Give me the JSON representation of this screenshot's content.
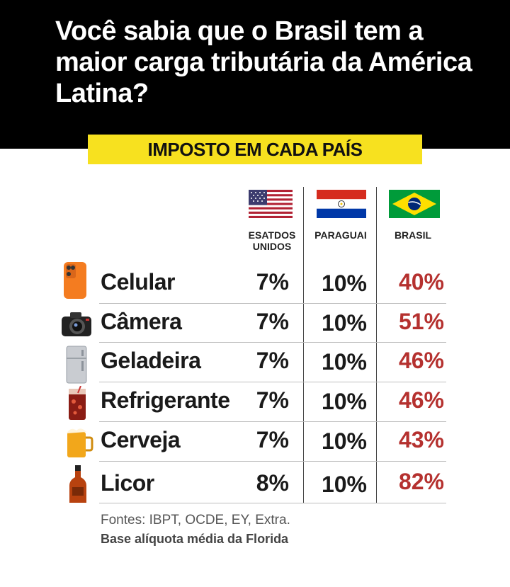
{
  "headline": "Você sabia que o Brasil tem a maior carga tributária da América Latina?",
  "subtitle": "IMPOSTO EM CADA PAÍS",
  "chart_data": {
    "type": "table",
    "title": "IMPOSTO EM CADA PAÍS",
    "columns": [
      "ESATDOS UNIDOS",
      "PARAGUAI",
      "BRASIL"
    ],
    "rows": [
      {
        "label": "Celular",
        "icon": "smartphone-icon",
        "values": [
          "7%",
          "10%",
          "40%"
        ]
      },
      {
        "label": "Câmera",
        "icon": "camera-icon",
        "values": [
          "7%",
          "10%",
          "51%"
        ]
      },
      {
        "label": "Geladeira",
        "icon": "refrigerator-icon",
        "values": [
          "7%",
          "10%",
          "46%"
        ]
      },
      {
        "label": "Refrigerante",
        "icon": "soda-glass-icon",
        "values": [
          "7%",
          "10%",
          "46%"
        ]
      },
      {
        "label": "Cerveja",
        "icon": "beer-mug-icon",
        "values": [
          "7%",
          "10%",
          "43%"
        ]
      },
      {
        "label": "Licor",
        "icon": "liquor-bottle-icon",
        "values": [
          "8%",
          "10%",
          "82%"
        ]
      }
    ],
    "colors": {
      "brasil_values": "#b5312f",
      "other_values": "#1a1a1a"
    }
  },
  "sources": "Fontes: IBPT, OCDE, EY, Extra.",
  "note": "Base alíquota média da Florida",
  "colors": {
    "header_bg": "#000000",
    "subtitle_bg": "#f7e11f"
  }
}
